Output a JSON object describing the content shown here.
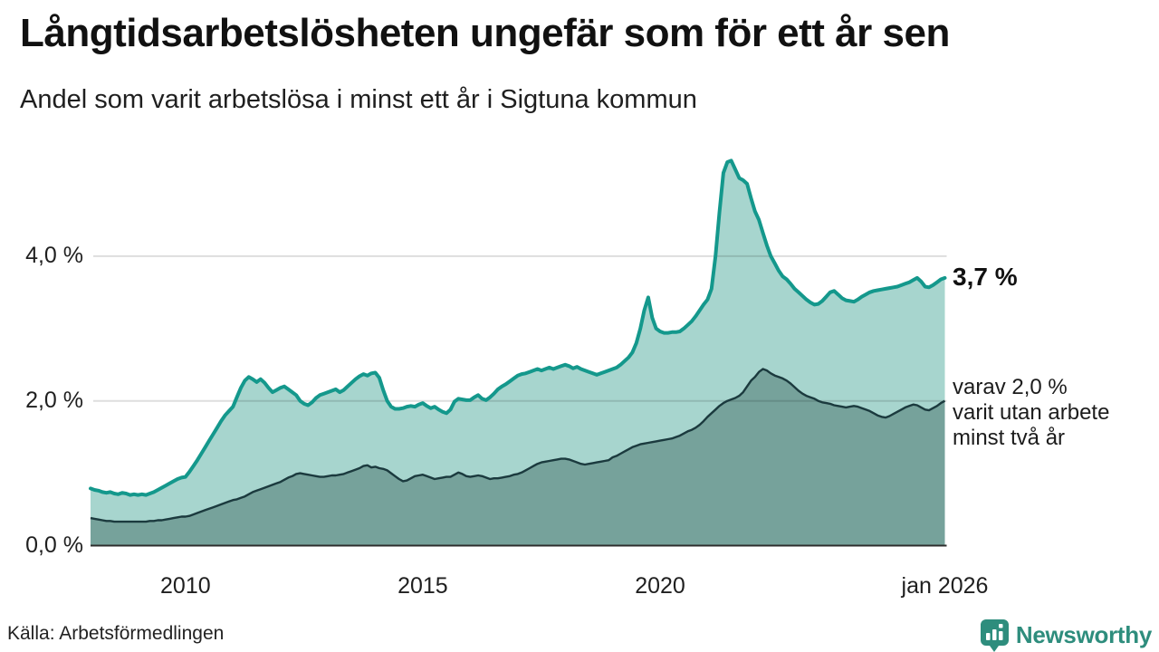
{
  "header": {
    "title": "Långtidsarbetslösheten ungefär som för ett år sen",
    "subtitle": "Andel som varit arbetslösa i minst ett år i Sigtuna kommun"
  },
  "chart_data": {
    "type": "area",
    "title": "Långtidsarbetslösheten ungefär som för ett år sen",
    "subtitle": "Andel som varit arbetslösa i minst ett år i Sigtuna kommun",
    "unit": "%",
    "frequency": "monthly",
    "x_start": "2008-01",
    "x_end": "2026-01",
    "ylim": [
      0,
      5.5
    ],
    "grid": "horizontal",
    "gridline_values": [
      2,
      4
    ],
    "ytick_labels": [
      "4,0 %",
      "2,0 %",
      "0,0 %"
    ],
    "ytick_values": [
      4,
      2,
      0
    ],
    "xtick_labels": [
      "2010",
      "2015",
      "2020",
      "jan 2026"
    ],
    "xtick_month_index": [
      24,
      84,
      144,
      216
    ],
    "series": [
      {
        "name": "Andel arbetslösa minst ett år",
        "line_color": "#14988C",
        "fill_color": "#A7D5CE",
        "values": [
          0.79,
          0.77,
          0.76,
          0.74,
          0.73,
          0.74,
          0.72,
          0.71,
          0.73,
          0.72,
          0.7,
          0.71,
          0.7,
          0.71,
          0.7,
          0.72,
          0.74,
          0.77,
          0.8,
          0.83,
          0.86,
          0.89,
          0.92,
          0.94,
          0.95,
          1.02,
          1.1,
          1.18,
          1.27,
          1.36,
          1.45,
          1.54,
          1.63,
          1.72,
          1.8,
          1.86,
          1.92,
          2.05,
          2.18,
          2.28,
          2.33,
          2.3,
          2.26,
          2.3,
          2.25,
          2.18,
          2.12,
          2.15,
          2.18,
          2.2,
          2.16,
          2.12,
          2.08,
          2.0,
          1.96,
          1.94,
          1.98,
          2.04,
          2.08,
          2.1,
          2.12,
          2.14,
          2.16,
          2.12,
          2.15,
          2.2,
          2.25,
          2.3,
          2.34,
          2.37,
          2.35,
          2.38,
          2.39,
          2.32,
          2.15,
          2.0,
          1.92,
          1.89,
          1.89,
          1.9,
          1.92,
          1.93,
          1.92,
          1.95,
          1.97,
          1.93,
          1.9,
          1.92,
          1.88,
          1.85,
          1.83,
          1.88,
          1.99,
          2.03,
          2.02,
          2.01,
          2.01,
          2.05,
          2.08,
          2.03,
          2.01,
          2.05,
          2.1,
          2.16,
          2.2,
          2.23,
          2.27,
          2.31,
          2.35,
          2.37,
          2.38,
          2.4,
          2.42,
          2.44,
          2.42,
          2.44,
          2.46,
          2.44,
          2.46,
          2.48,
          2.5,
          2.48,
          2.45,
          2.47,
          2.44,
          2.42,
          2.4,
          2.38,
          2.36,
          2.38,
          2.4,
          2.42,
          2.44,
          2.46,
          2.5,
          2.55,
          2.6,
          2.67,
          2.8,
          3.0,
          3.25,
          3.43,
          3.15,
          3.0,
          2.96,
          2.94,
          2.94,
          2.95,
          2.95,
          2.96,
          3.0,
          3.05,
          3.1,
          3.17,
          3.25,
          3.33,
          3.4,
          3.55,
          4.0,
          4.6,
          5.15,
          5.3,
          5.32,
          5.2,
          5.08,
          5.05,
          5.0,
          4.8,
          4.62,
          4.5,
          4.32,
          4.15,
          4.0,
          3.9,
          3.8,
          3.72,
          3.68,
          3.62,
          3.55,
          3.5,
          3.45,
          3.4,
          3.36,
          3.33,
          3.34,
          3.38,
          3.44,
          3.5,
          3.52,
          3.47,
          3.42,
          3.39,
          3.38,
          3.37,
          3.4,
          3.44,
          3.47,
          3.5,
          3.52,
          3.53,
          3.54,
          3.55,
          3.56,
          3.57,
          3.58,
          3.6,
          3.62,
          3.64,
          3.67,
          3.7,
          3.65,
          3.58,
          3.57,
          3.6,
          3.64,
          3.68,
          3.7
        ]
      },
      {
        "name": "varav arbetslösa minst två år",
        "line_color": "#1B3A3E",
        "fill_color": "#76A29B",
        "values": [
          0.38,
          0.37,
          0.36,
          0.35,
          0.34,
          0.34,
          0.33,
          0.33,
          0.33,
          0.33,
          0.33,
          0.33,
          0.33,
          0.33,
          0.33,
          0.34,
          0.34,
          0.35,
          0.35,
          0.36,
          0.37,
          0.38,
          0.39,
          0.4,
          0.4,
          0.41,
          0.43,
          0.45,
          0.47,
          0.49,
          0.51,
          0.53,
          0.55,
          0.57,
          0.59,
          0.61,
          0.63,
          0.64,
          0.66,
          0.68,
          0.71,
          0.74,
          0.76,
          0.78,
          0.8,
          0.82,
          0.84,
          0.86,
          0.88,
          0.91,
          0.94,
          0.96,
          0.99,
          1.0,
          0.99,
          0.98,
          0.97,
          0.96,
          0.95,
          0.95,
          0.96,
          0.97,
          0.97,
          0.98,
          0.99,
          1.01,
          1.03,
          1.05,
          1.07,
          1.1,
          1.11,
          1.08,
          1.09,
          1.07,
          1.06,
          1.04,
          1.0,
          0.96,
          0.92,
          0.89,
          0.9,
          0.93,
          0.96,
          0.97,
          0.98,
          0.96,
          0.94,
          0.92,
          0.93,
          0.94,
          0.95,
          0.95,
          0.98,
          1.01,
          0.99,
          0.96,
          0.95,
          0.96,
          0.97,
          0.96,
          0.94,
          0.92,
          0.93,
          0.93,
          0.94,
          0.95,
          0.96,
          0.98,
          0.99,
          1.01,
          1.04,
          1.07,
          1.1,
          1.13,
          1.15,
          1.16,
          1.17,
          1.18,
          1.19,
          1.2,
          1.2,
          1.19,
          1.17,
          1.15,
          1.13,
          1.12,
          1.13,
          1.14,
          1.15,
          1.16,
          1.17,
          1.18,
          1.22,
          1.24,
          1.27,
          1.3,
          1.33,
          1.36,
          1.38,
          1.4,
          1.41,
          1.42,
          1.43,
          1.44,
          1.45,
          1.46,
          1.47,
          1.48,
          1.5,
          1.52,
          1.55,
          1.58,
          1.6,
          1.63,
          1.67,
          1.72,
          1.78,
          1.83,
          1.88,
          1.93,
          1.97,
          2.0,
          2.02,
          2.04,
          2.07,
          2.12,
          2.2,
          2.28,
          2.33,
          2.4,
          2.44,
          2.42,
          2.38,
          2.35,
          2.33,
          2.31,
          2.28,
          2.24,
          2.19,
          2.14,
          2.1,
          2.07,
          2.05,
          2.03,
          2.0,
          1.98,
          1.97,
          1.96,
          1.94,
          1.93,
          1.92,
          1.91,
          1.92,
          1.93,
          1.92,
          1.9,
          1.88,
          1.86,
          1.83,
          1.8,
          1.78,
          1.77,
          1.79,
          1.82,
          1.85,
          1.88,
          1.91,
          1.93,
          1.95,
          1.94,
          1.91,
          1.88,
          1.87,
          1.9,
          1.93,
          1.97,
          2.0
        ]
      }
    ],
    "annotations": {
      "end_value_label": "3,7 %",
      "end_sub_label_lines": [
        "varav 2,0 %",
        "varit utan arbete",
        "minst två år"
      ]
    }
  },
  "footer": {
    "source": "Källa: Arbetsförmedlingen",
    "brand_name": "Newsworthy"
  },
  "colors": {
    "line_top": "#14988C",
    "fill_top": "#A7D5CE",
    "line_bottom": "#1B3A3E",
    "fill_bottom": "#76A29B",
    "gridline": "rgba(0,0,0,0.13)",
    "baseline": "#2D2D2D",
    "brand_teal": "#2E8D7D",
    "text": "#111111"
  }
}
